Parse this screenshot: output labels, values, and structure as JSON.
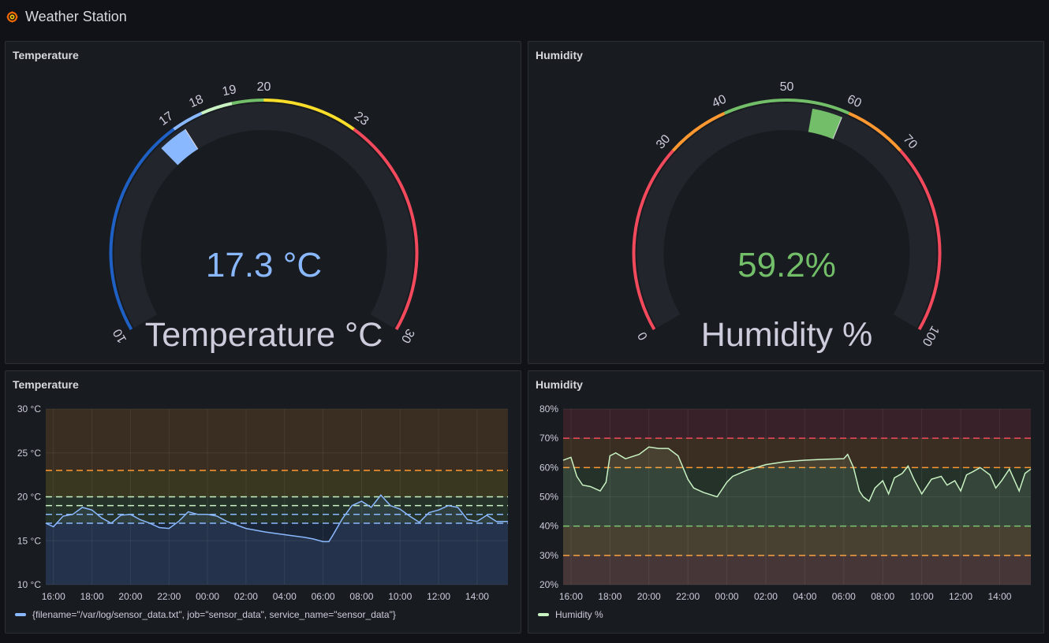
{
  "app": {
    "title": "Weather Station"
  },
  "colors": {
    "blue": "#8ab8ff",
    "darkblue": "#1f60c4",
    "green": "#73bf69",
    "yellow": "#fade2a",
    "lightgreen": "#c8f2c2",
    "orange": "#ff9830",
    "red": "#f2495c",
    "track": "#22252b"
  },
  "panels": {
    "temp_gauge": {
      "title": "Temperature",
      "value": 17.3,
      "value_text": "17.3 °C",
      "label": "Temperature °C",
      "min": 10,
      "max": 30,
      "ticks": [
        "10",
        "17",
        "18",
        "19",
        "20",
        "23",
        "30"
      ],
      "thresholds": [
        {
          "from": 10,
          "to": 17,
          "color": "#1f60c4"
        },
        {
          "from": 17,
          "to": 18,
          "color": "#8ab8ff"
        },
        {
          "from": 18,
          "to": 19,
          "color": "#c8f2c2"
        },
        {
          "from": 19,
          "to": 20,
          "color": "#73bf69"
        },
        {
          "from": 20,
          "to": 23,
          "color": "#fade2a"
        },
        {
          "from": 23,
          "to": 30,
          "color": "#f2495c"
        }
      ],
      "value_color": "#8ab8ff"
    },
    "hum_gauge": {
      "title": "Humidity",
      "value": 59.2,
      "value_text": "59.2%",
      "label": "Humidity %",
      "min": 0,
      "max": 100,
      "ticks": [
        "0",
        "30",
        "40",
        "50",
        "60",
        "70",
        "100"
      ],
      "thresholds": [
        {
          "from": 0,
          "to": 30,
          "color": "#f2495c"
        },
        {
          "from": 30,
          "to": 40,
          "color": "#ff9830"
        },
        {
          "from": 40,
          "to": 60,
          "color": "#73bf69"
        },
        {
          "from": 60,
          "to": 70,
          "color": "#ff9830"
        },
        {
          "from": 70,
          "to": 100,
          "color": "#f2495c"
        }
      ],
      "value_color": "#73bf69"
    },
    "temp_chart": {
      "title": "Temperature",
      "legend": "{filename=\"/var/log/sensor_data.txt\", job=\"sensor_data\", service_name=\"sensor_data\"}"
    },
    "hum_chart": {
      "title": "Humidity",
      "legend": "Humidity %"
    }
  },
  "chart_data": [
    {
      "type": "line",
      "title": "Temperature",
      "x_ticks": [
        "16:00",
        "18:00",
        "20:00",
        "22:00",
        "00:00",
        "02:00",
        "04:00",
        "06:00",
        "08:00",
        "10:00",
        "12:00",
        "14:00"
      ],
      "y_ticks": [
        "10 °C",
        "15 °C",
        "20 °C",
        "25 °C",
        "30 °C"
      ],
      "ylim": [
        10,
        30
      ],
      "x_range_hours": [
        15.6,
        39.6
      ],
      "threshold_lines": [
        {
          "value": 17,
          "color": "#8ab8ff"
        },
        {
          "value": 18,
          "color": "#8ab8ff"
        },
        {
          "value": 19,
          "color": "#c8f2c2"
        },
        {
          "value": 20,
          "color": "#c8f2c2"
        },
        {
          "value": 23,
          "color": "#ff9830"
        }
      ],
      "bands": [
        {
          "from": 10,
          "to": 17,
          "color": "#1f60c4"
        },
        {
          "from": 17,
          "to": 20,
          "color": "#73bf69"
        },
        {
          "from": 20,
          "to": 23,
          "color": "#fade2a"
        },
        {
          "from": 23,
          "to": 30,
          "color": "#ff9830"
        }
      ],
      "series": [
        {
          "name": "{filename=\"/var/log/sensor_data.txt\", job=\"sensor_data\", service_name=\"sensor_data\"}",
          "color": "#8ab8ff",
          "x": [
            15.6,
            16.0,
            16.5,
            17.0,
            17.5,
            18.0,
            18.5,
            19.0,
            19.5,
            20.0,
            20.5,
            21.0,
            21.5,
            22.0,
            22.5,
            23.0,
            23.5,
            24.0,
            24.5,
            25.0,
            26.0,
            27.0,
            28.0,
            29.0,
            29.5,
            30.0,
            30.3,
            30.5,
            31.0,
            31.5,
            32.0,
            32.5,
            33.0,
            33.5,
            34.0,
            34.5,
            35.0,
            35.5,
            36.0,
            36.5,
            37.0,
            37.5,
            38.0,
            38.5,
            39.0,
            39.6
          ],
          "y": [
            17.0,
            16.6,
            17.8,
            18.0,
            18.8,
            18.5,
            17.6,
            17.0,
            17.9,
            18.0,
            17.4,
            17.0,
            16.5,
            16.4,
            17.2,
            18.3,
            18.0,
            18.0,
            17.8,
            17.2,
            16.4,
            16.0,
            15.7,
            15.4,
            15.2,
            14.9,
            14.9,
            15.6,
            17.5,
            19.0,
            19.5,
            18.8,
            20.2,
            19.0,
            18.6,
            17.8,
            17.1,
            18.2,
            18.5,
            19.0,
            18.8,
            17.4,
            17.2,
            17.9,
            17.2,
            17.2
          ]
        }
      ]
    },
    {
      "type": "line",
      "title": "Humidity",
      "x_ticks": [
        "16:00",
        "18:00",
        "20:00",
        "22:00",
        "00:00",
        "02:00",
        "04:00",
        "06:00",
        "08:00",
        "10:00",
        "12:00",
        "14:00"
      ],
      "y_ticks": [
        "20%",
        "30%",
        "40%",
        "50%",
        "60%",
        "70%",
        "80%"
      ],
      "ylim": [
        20,
        80
      ],
      "x_range_hours": [
        15.6,
        39.6
      ],
      "threshold_lines": [
        {
          "value": 30,
          "color": "#ff9830"
        },
        {
          "value": 40,
          "color": "#73bf69"
        },
        {
          "value": 60,
          "color": "#ff9830"
        },
        {
          "value": 70,
          "color": "#f2495c"
        }
      ],
      "bands": [
        {
          "from": 20,
          "to": 30,
          "color": "#f2495c"
        },
        {
          "from": 30,
          "to": 40,
          "color": "#ff9830"
        },
        {
          "from": 40,
          "to": 60,
          "color": "#73bf69"
        },
        {
          "from": 60,
          "to": 70,
          "color": "#ff9830"
        },
        {
          "from": 70,
          "to": 80,
          "color": "#f2495c"
        }
      ],
      "series": [
        {
          "name": "Humidity %",
          "color": "#c8f2c2",
          "x": [
            15.6,
            16.0,
            16.3,
            16.6,
            17.0,
            17.5,
            17.8,
            18.0,
            18.3,
            18.8,
            19.5,
            20.0,
            20.5,
            21.0,
            21.5,
            22.0,
            22.3,
            22.8,
            23.5,
            24.0,
            24.3,
            25.0,
            26.0,
            27.0,
            28.0,
            29.0,
            30.0,
            30.2,
            30.5,
            30.8,
            31.0,
            31.3,
            31.6,
            32.0,
            32.3,
            32.6,
            33.0,
            33.3,
            33.6,
            34.0,
            34.5,
            35.0,
            35.3,
            35.7,
            36.0,
            36.3,
            36.6,
            37.0,
            37.5,
            37.8,
            38.1,
            38.5,
            39.0,
            39.3,
            39.6
          ],
          "y": [
            62.5,
            63.5,
            57.0,
            54.0,
            53.5,
            52.0,
            55.0,
            64.0,
            65.0,
            63.0,
            64.5,
            67.0,
            66.5,
            66.5,
            64.0,
            56.0,
            53.0,
            51.5,
            50.0,
            55.0,
            57.0,
            59.0,
            61.0,
            62.0,
            62.5,
            62.8,
            63.0,
            64.5,
            60.0,
            52.0,
            50.0,
            48.5,
            53.0,
            55.5,
            51.0,
            56.5,
            58.0,
            60.5,
            56.0,
            51.0,
            56.0,
            57.0,
            54.0,
            55.5,
            52.0,
            57.5,
            58.5,
            60.0,
            57.5,
            53.0,
            55.5,
            59.5,
            52.0,
            58.0,
            59.5
          ]
        }
      ]
    }
  ]
}
